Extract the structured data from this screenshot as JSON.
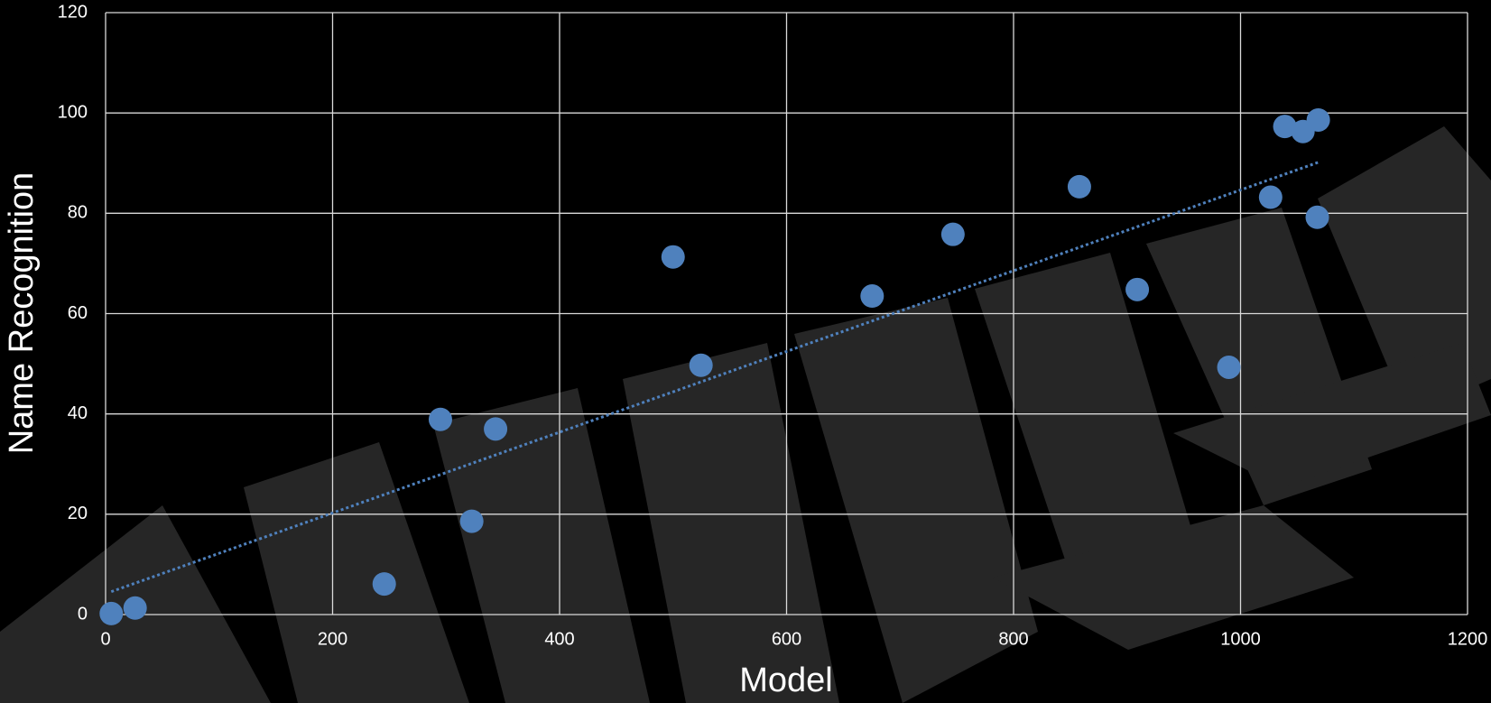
{
  "chart_data": {
    "type": "scatter",
    "x_label": "Model",
    "y_label": "Name Recognition",
    "series": [
      {
        "color": "#4f81bd",
        "x": [
          5,
          26,
          245.5,
          295,
          322.6,
          343.6,
          500,
          524.6,
          675.4,
          746.6,
          858,
          909,
          989.7,
          1026.5,
          1039,
          1055,
          1067.6,
          1068.5
        ],
        "values": [
          0.2,
          1.3,
          6.1,
          38.9,
          18.6,
          37,
          71.3,
          49.7,
          63.5,
          75.8,
          85.3,
          64.8,
          49.3,
          83.2,
          97.3,
          96.3,
          79.2,
          98.6
        ]
      }
    ],
    "trendline": "linear",
    "xlim": [
      0,
      1200
    ],
    "xticks": [
      0,
      200,
      400,
      600,
      800,
      1000,
      1200
    ],
    "ylim": [
      0,
      120
    ],
    "yticks": [
      0,
      20,
      40,
      60,
      80,
      100,
      120
    ],
    "grid": true
  }
}
